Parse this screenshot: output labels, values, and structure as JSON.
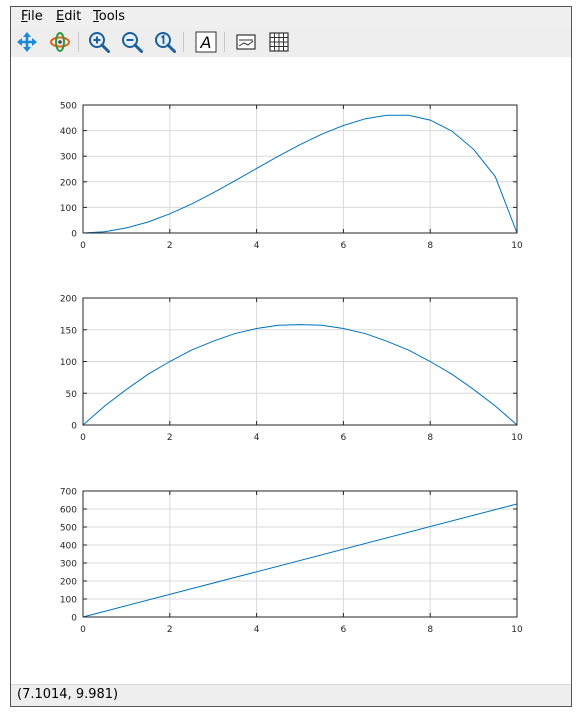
{
  "menu": {
    "file": {
      "first": "F",
      "rest": "ile"
    },
    "edit": {
      "first": "E",
      "rest": "dit"
    },
    "tools": {
      "first": "T",
      "rest": "ools"
    }
  },
  "toolbar": {
    "icons": [
      "pan-icon",
      "rotate-icon",
      "zoom-in-icon",
      "zoom-out-icon",
      "zoom-reset-icon",
      "text-icon",
      "legend-icon",
      "grid-icon"
    ],
    "text_glyph": "A"
  },
  "status": {
    "coords": "(7.1014, 9.981)"
  },
  "colors": {
    "line": "#0072bd",
    "grid": "#d9d9d9",
    "axes": "#262626"
  },
  "chart_data": [
    {
      "type": "line",
      "xlim": [
        0,
        10
      ],
      "ylim": [
        0,
        500
      ],
      "xticks": [
        0,
        2,
        4,
        6,
        8,
        10
      ],
      "yticks": [
        0,
        100,
        200,
        300,
        400,
        500
      ],
      "grid": true,
      "series": [
        {
          "x": [
            0,
            0.5,
            1,
            1.5,
            2,
            2.5,
            3,
            3.5,
            4,
            4.5,
            5,
            5.5,
            6,
            6.5,
            7,
            7.5,
            8,
            8.5,
            9,
            9.5,
            10
          ],
          "values": [
            0,
            5,
            20,
            43,
            75,
            113,
            157,
            204,
            252,
            300,
            345,
            386,
            420,
            446,
            460,
            460,
            441,
            398,
            327,
            220,
            0
          ]
        }
      ]
    },
    {
      "type": "line",
      "xlim": [
        0,
        10
      ],
      "ylim": [
        0,
        200
      ],
      "xticks": [
        0,
        2,
        4,
        6,
        8,
        10
      ],
      "yticks": [
        0,
        50,
        100,
        150,
        200
      ],
      "grid": true,
      "series": [
        {
          "x": [
            0,
            0.5,
            1,
            1.5,
            2,
            2.5,
            3,
            3.5,
            4,
            4.5,
            5,
            5.5,
            6,
            6.5,
            7,
            7.5,
            8,
            8.5,
            9,
            9.5,
            10
          ],
          "values": [
            0,
            30,
            56,
            80,
            100,
            118,
            132,
            144,
            152,
            157,
            158,
            157,
            152,
            144,
            132,
            118,
            100,
            80,
            56,
            30,
            0
          ]
        }
      ]
    },
    {
      "type": "line",
      "xlim": [
        0,
        10
      ],
      "ylim": [
        0,
        700
      ],
      "xticks": [
        0,
        2,
        4,
        6,
        8,
        10
      ],
      "yticks": [
        0,
        100,
        200,
        300,
        400,
        500,
        600,
        700
      ],
      "grid": true,
      "series": [
        {
          "x": [
            0,
            10
          ],
          "values": [
            0,
            628
          ]
        }
      ]
    }
  ]
}
